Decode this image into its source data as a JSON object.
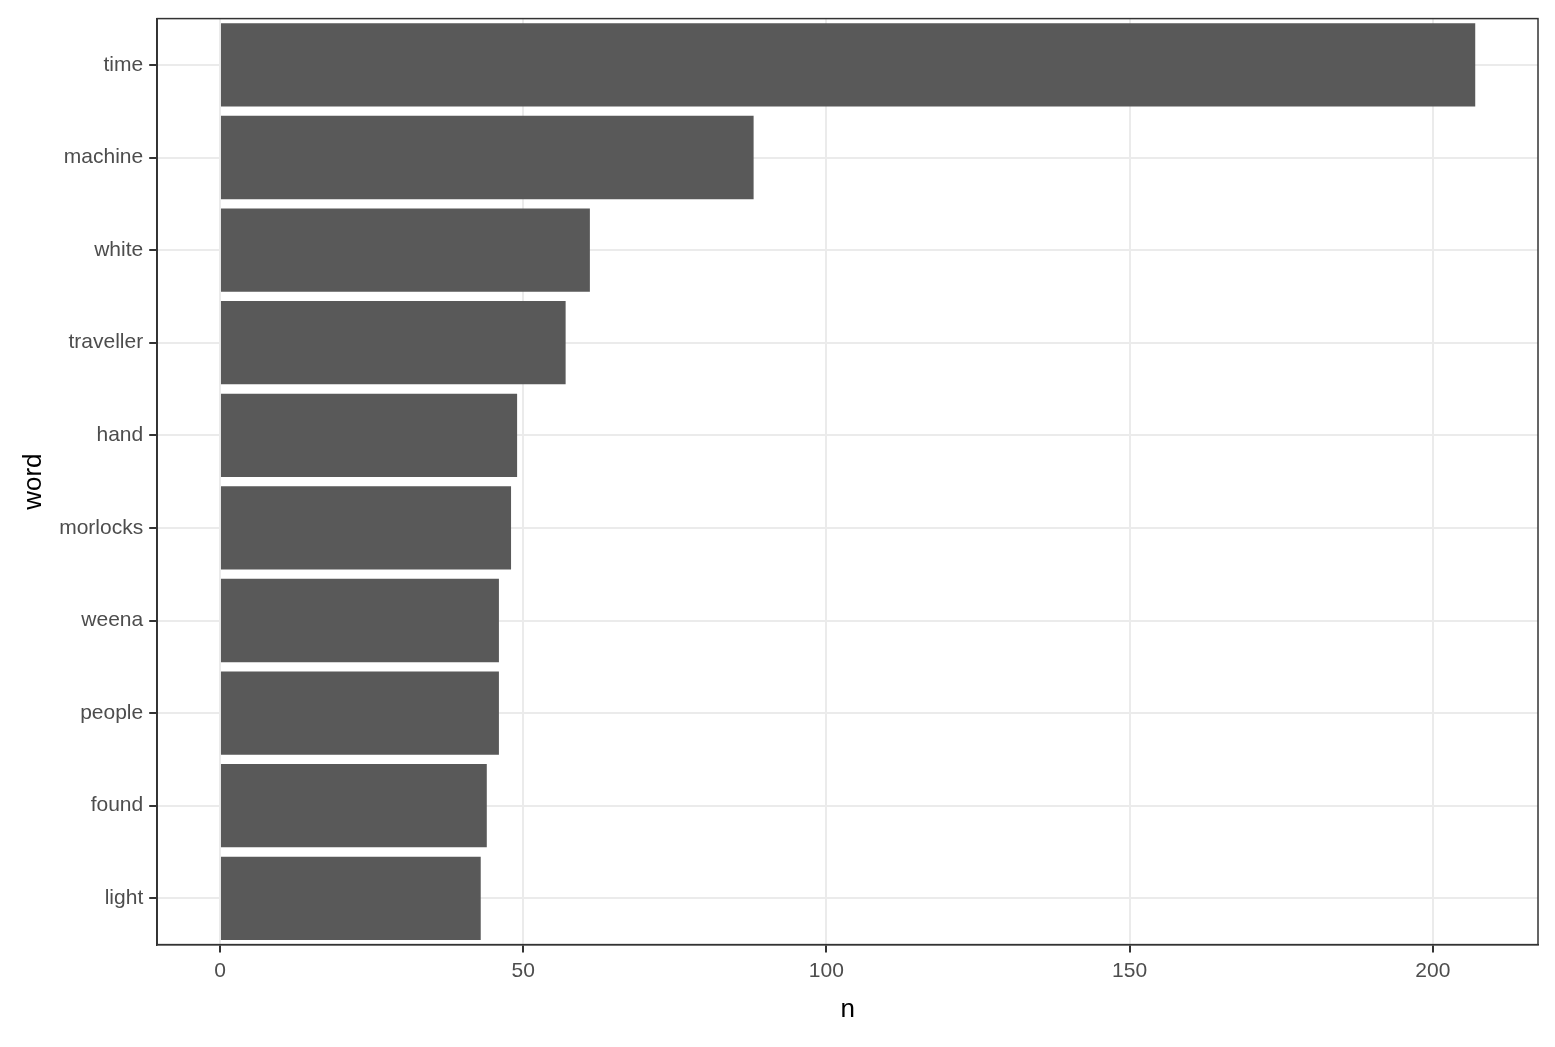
{
  "chart_data": {
    "type": "bar",
    "orientation": "horizontal",
    "categories": [
      "time",
      "machine",
      "white",
      "traveller",
      "hand",
      "morlocks",
      "weena",
      "people",
      "found",
      "light"
    ],
    "values": [
      207,
      88,
      61,
      57,
      49,
      48,
      46,
      46,
      44,
      43
    ],
    "color": "#595959",
    "x_label": "n",
    "y_label": "word",
    "xlim": [
      -10.35,
      217.35
    ],
    "xticks": [
      0,
      50,
      100,
      150,
      200
    ],
    "grid": true
  }
}
